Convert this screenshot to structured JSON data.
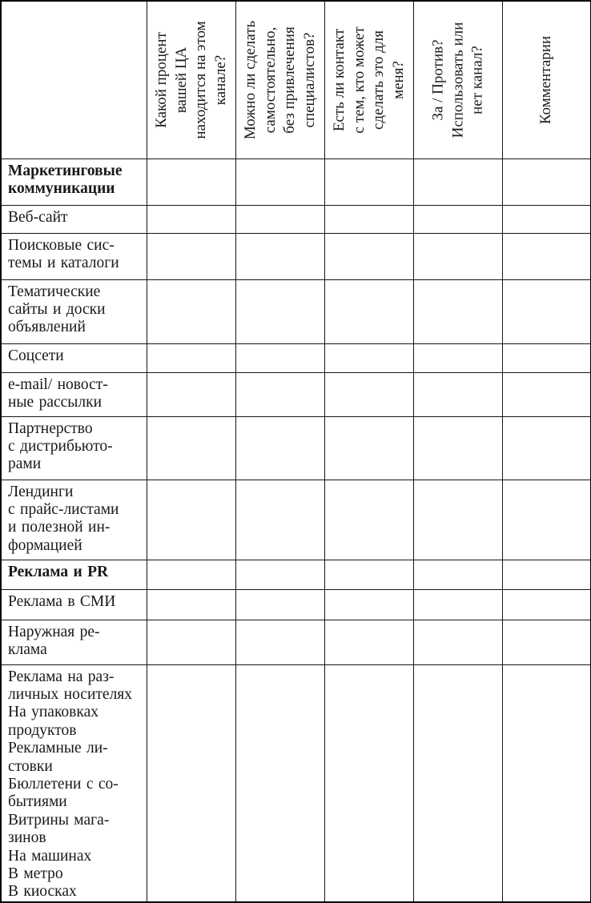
{
  "colors": {
    "background": "#ffffff",
    "text": "#1a1a1a",
    "border": "#000000"
  },
  "table": {
    "corner_label": "",
    "column_headers": [
      "Какой процент\nвашей ЦА\nнаходится на этом\nканале?",
      "Можно ли сделать\nсамостоятельно,\nбез привлечения\nспециалистов?",
      "Есть ли контакт\nс тем, кто может\nсделать это для\nменя?",
      "За / Против?\nИспользовать или\nнет канал?",
      "Комментарии"
    ],
    "rows": [
      {
        "label": "Маркетинговые\nкоммуникации",
        "section": true
      },
      {
        "label": "Веб-сайт",
        "section": false
      },
      {
        "label": "Поисковые сис-\nтемы и каталоги",
        "section": false
      },
      {
        "label": "Тематические\nсайты и доски\nобъявлений",
        "section": false
      },
      {
        "label": "Соцсети",
        "section": false
      },
      {
        "label": "e-mail/ новост-\nные рассылки",
        "section": false
      },
      {
        "label": "Партнерство\nс дистрибьюто-\nрами",
        "section": false
      },
      {
        "label": "Лендинги\nс прайс-листами\nи полезной ин-\nформацией",
        "section": false
      },
      {
        "label": "Реклама и PR",
        "section": true
      },
      {
        "label": "Реклама в СМИ",
        "section": false
      },
      {
        "label": "Наружная ре-\nклама",
        "section": false
      },
      {
        "label": "Реклама на раз-\nличных носителях\nНа упаковках\nпродуктов\nРекламные ли-\nстовки\nБюллетени с со-\nбытиями\nВитрины мага-\nзинов\nНа машинах\nВ метро\nВ киосках",
        "section": false
      }
    ]
  }
}
